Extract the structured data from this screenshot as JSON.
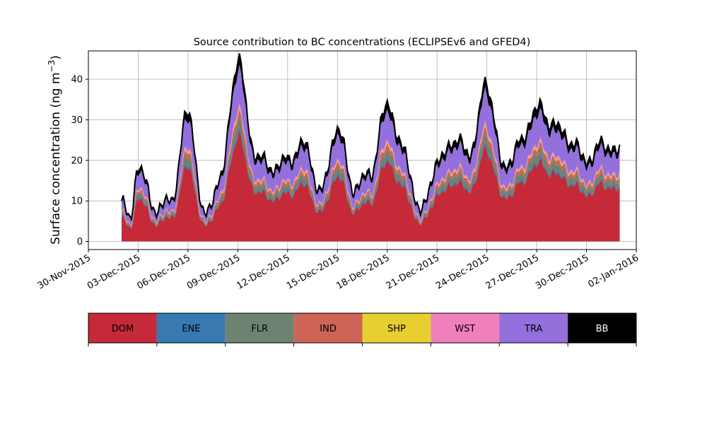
{
  "chart_data": {
    "type": "area",
    "stacked": true,
    "title": "Source contribution to BC concentrations (ECLIPSEv6 and GFED4)",
    "xlabel": "",
    "ylabel": "Surface concentration (ng m⁻³)",
    "ylabel_main": "Surface concentration (ng m",
    "ylabel_sup": "−3",
    "ylabel_end": ")",
    "x_start": "2015-12-02",
    "x_end": "2016-01-01",
    "xlim": [
      "2015-11-30",
      "2016-01-02"
    ],
    "ylim": [
      -2,
      47
    ],
    "grid": true,
    "yticks": [
      0,
      10,
      20,
      30,
      40
    ],
    "xticks": [
      {
        "date": "2015-11-30",
        "label": "30-Nov-2015"
      },
      {
        "date": "2015-12-03",
        "label": "03-Dec-2015"
      },
      {
        "date": "2015-12-06",
        "label": "06-Dec-2015"
      },
      {
        "date": "2015-12-09",
        "label": "09-Dec-2015"
      },
      {
        "date": "2015-12-12",
        "label": "12-Dec-2015"
      },
      {
        "date": "2015-12-15",
        "label": "15-Dec-2015"
      },
      {
        "date": "2015-12-18",
        "label": "18-Dec-2015"
      },
      {
        "date": "2015-12-21",
        "label": "21-Dec-2015"
      },
      {
        "date": "2015-12-24",
        "label": "24-Dec-2015"
      },
      {
        "date": "2015-12-27",
        "label": "27-Dec-2015"
      },
      {
        "date": "2015-12-30",
        "label": "30-Dec-2015"
      },
      {
        "date": "2016-01-02",
        "label": "02-Jan-2016"
      }
    ],
    "total_profile_dates": [
      "2015-12-02",
      "2015-12-02T12:00",
      "2015-12-03",
      "2015-12-04",
      "2015-12-05",
      "2015-12-06",
      "2015-12-07",
      "2015-12-08",
      "2015-12-09",
      "2015-12-10",
      "2015-12-11",
      "2015-12-12",
      "2015-12-13",
      "2015-12-14",
      "2015-12-15",
      "2015-12-16",
      "2015-12-17",
      "2015-12-18",
      "2015-12-19",
      "2015-12-20",
      "2015-12-21",
      "2015-12-22",
      "2015-12-23",
      "2015-12-24",
      "2015-12-25",
      "2015-12-26",
      "2015-12-27",
      "2015-12-28",
      "2015-12-29",
      "2015-12-30",
      "2015-12-31",
      "2016-01-01"
    ],
    "total_profile": [
      10,
      5,
      19,
      8,
      10,
      32,
      6,
      16,
      45,
      22,
      18,
      20,
      24,
      12,
      28,
      13,
      17,
      34,
      22,
      7,
      19,
      25,
      22,
      39,
      18,
      24,
      33,
      29,
      25,
      20,
      24,
      22
    ],
    "series": [
      {
        "name": "DOM",
        "color": "#c62937",
        "share": 0.58
      },
      {
        "name": "ENE",
        "color": "#3779b0",
        "share": 0.02
      },
      {
        "name": "FLR",
        "color": "#6e8272",
        "share": 0.06
      },
      {
        "name": "IND",
        "color": "#cc6555",
        "share": 0.04
      },
      {
        "name": "SHP",
        "color": "#e6cf2e",
        "share": 0.01
      },
      {
        "name": "WST",
        "color": "#f07fbe",
        "share": 0.02
      },
      {
        "name": "TRA",
        "color": "#9370dc",
        "share": 0.21
      },
      {
        "name": "BB",
        "color": "#000000",
        "share": 0.06
      }
    ]
  }
}
